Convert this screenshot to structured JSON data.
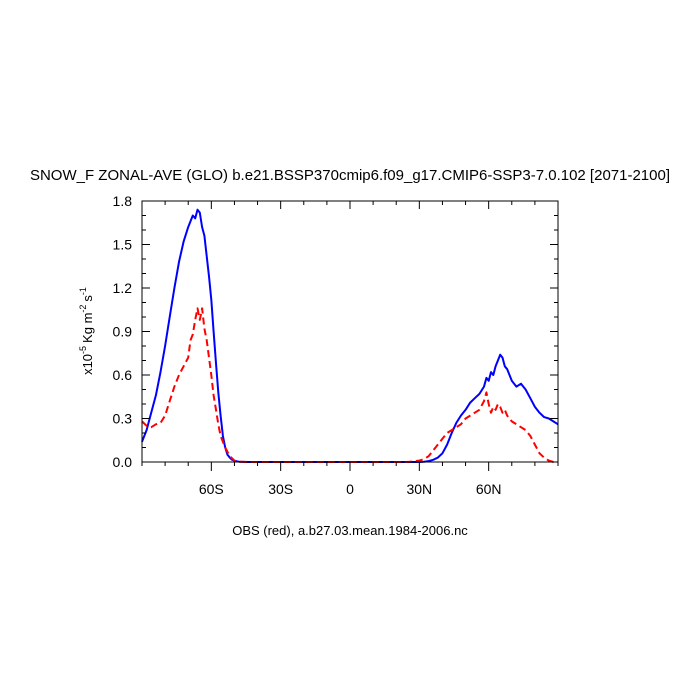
{
  "chart_data": {
    "type": "line",
    "title": "SNOW_F ZONAL-AVE (GLO) b.e21.BSSP370cmip6.f09_g17.CMIP6-SSP3-7.0.102 [2071-2100]",
    "xlabel": "OBS (red), a.b27.03.mean.1984-2006.nc",
    "ylabel_scale": "x10",
    "ylabel_exp": "-5",
    "ylabel_units": "Kg m",
    "ylabel_units_exp": "-2",
    "ylabel_s": "s",
    "ylabel_s_exp": "-1",
    "xlim": [
      -90,
      90
    ],
    "ylim": [
      0.0,
      1.8
    ],
    "xticks": [
      {
        "value": -60,
        "label": "60S"
      },
      {
        "value": -30,
        "label": "30S"
      },
      {
        "value": 0,
        "label": "0"
      },
      {
        "value": 30,
        "label": "30N"
      },
      {
        "value": 60,
        "label": "60N"
      }
    ],
    "yticks": [
      {
        "value": 0.0,
        "label": "0.0"
      },
      {
        "value": 0.3,
        "label": "0.3"
      },
      {
        "value": 0.6,
        "label": "0.6"
      },
      {
        "value": 0.9,
        "label": "0.9"
      },
      {
        "value": 1.2,
        "label": "1.2"
      },
      {
        "value": 1.5,
        "label": "1.5"
      },
      {
        "value": 1.8,
        "label": "1.8"
      }
    ],
    "series": [
      {
        "color": "#0000ff",
        "style": "solid",
        "x": [
          -90,
          -88,
          -86,
          -84,
          -82,
          -80,
          -78,
          -76,
          -74,
          -72,
          -70,
          -69,
          -68,
          -67,
          -66,
          -65,
          -64,
          -63,
          -62,
          -61,
          -60,
          -59,
          -58,
          -57,
          -56,
          -55,
          -54,
          -53,
          -52,
          -51,
          -50,
          -49,
          -48,
          -46,
          -44,
          -42,
          -40,
          -30,
          -20,
          -10,
          0,
          10,
          20,
          30,
          32,
          34,
          36,
          38,
          40,
          42,
          44,
          46,
          48,
          50,
          52,
          54,
          56,
          58,
          59,
          60,
          61,
          62,
          63,
          64,
          65,
          66,
          67,
          68,
          69,
          70,
          72,
          74,
          76,
          78,
          80,
          82,
          84,
          86,
          88,
          90
        ],
        "y": [
          0.14,
          0.22,
          0.34,
          0.46,
          0.62,
          0.8,
          1.0,
          1.2,
          1.38,
          1.52,
          1.62,
          1.66,
          1.7,
          1.68,
          1.74,
          1.72,
          1.62,
          1.56,
          1.42,
          1.28,
          1.12,
          0.9,
          0.68,
          0.48,
          0.32,
          0.18,
          0.1,
          0.05,
          0.03,
          0.015,
          0.01,
          0.005,
          0.002,
          0.001,
          0.0,
          0.0,
          0.0,
          0.0,
          0.0,
          0.0,
          0.0,
          0.0,
          0.0,
          0.0,
          0.002,
          0.006,
          0.015,
          0.03,
          0.06,
          0.12,
          0.2,
          0.27,
          0.32,
          0.36,
          0.41,
          0.44,
          0.47,
          0.52,
          0.58,
          0.56,
          0.62,
          0.6,
          0.66,
          0.7,
          0.74,
          0.72,
          0.66,
          0.64,
          0.6,
          0.56,
          0.52,
          0.54,
          0.5,
          0.44,
          0.38,
          0.34,
          0.31,
          0.3,
          0.28,
          0.26
        ]
      },
      {
        "color": "#ff0000",
        "style": "dashed",
        "x": [
          -90,
          -88,
          -86,
          -84,
          -82,
          -80,
          -78,
          -76,
          -74,
          -72,
          -70,
          -69,
          -68,
          -67,
          -66,
          -65,
          -64,
          -63,
          -62,
          -61,
          -60,
          -59,
          -58,
          -57,
          -56,
          -55,
          -54,
          -53,
          -52,
          -51,
          -50,
          -49,
          -48,
          -46,
          -44,
          -42,
          -40,
          -30,
          -20,
          -10,
          0,
          10,
          20,
          24,
          26,
          28,
          30,
          32,
          34,
          36,
          38,
          40,
          42,
          44,
          46,
          48,
          50,
          52,
          54,
          56,
          58,
          59,
          60,
          61,
          62,
          63,
          64,
          65,
          66,
          67,
          68,
          69,
          70,
          72,
          74,
          76,
          78,
          80,
          82,
          84,
          86,
          88,
          90
        ],
        "y": [
          0.28,
          0.25,
          0.24,
          0.26,
          0.27,
          0.32,
          0.42,
          0.52,
          0.6,
          0.66,
          0.72,
          0.84,
          0.88,
          0.98,
          1.06,
          0.98,
          1.06,
          0.92,
          0.84,
          0.72,
          0.6,
          0.46,
          0.36,
          0.26,
          0.18,
          0.14,
          0.1,
          0.07,
          0.04,
          0.025,
          0.01,
          0.005,
          0.002,
          0.001,
          0.0,
          0.0,
          0.0,
          0.0,
          0.0,
          0.0,
          0.0,
          0.0,
          0.0,
          0.0,
          0.002,
          0.006,
          0.01,
          0.02,
          0.04,
          0.08,
          0.12,
          0.16,
          0.2,
          0.22,
          0.24,
          0.26,
          0.3,
          0.32,
          0.34,
          0.36,
          0.42,
          0.48,
          0.4,
          0.34,
          0.38,
          0.36,
          0.4,
          0.38,
          0.34,
          0.36,
          0.32,
          0.3,
          0.28,
          0.26,
          0.24,
          0.22,
          0.18,
          0.12,
          0.06,
          0.03,
          0.01,
          0.0,
          0.0
        ]
      }
    ]
  }
}
